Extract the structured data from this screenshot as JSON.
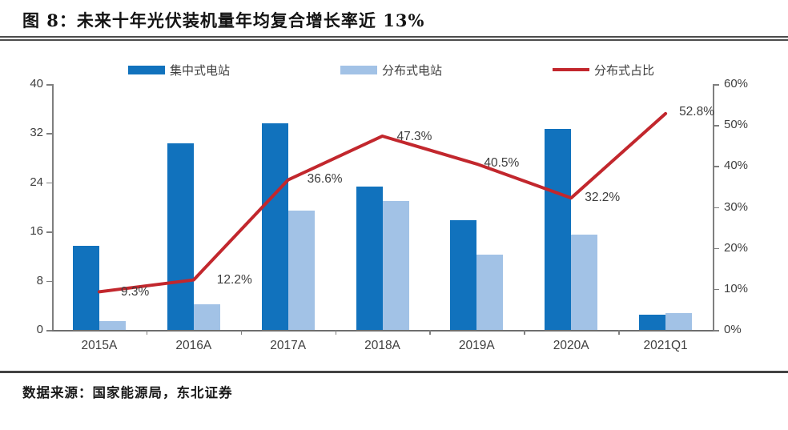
{
  "page": {
    "title": "图 8：未来十年光伏装机量年均复合增长率近 13%",
    "source": "数据来源：国家能源局，东北证券"
  },
  "chart_data": {
    "type": "bar",
    "subtype": "bar+line combo, dual axis",
    "categories": [
      "2015A",
      "2016A",
      "2017A",
      "2018A",
      "2019A",
      "2020A",
      "2021Q1"
    ],
    "series": [
      {
        "name": "集中式电站",
        "type": "bar",
        "axis": "left",
        "color": "#1172bd",
        "values": [
          13.7,
          30.3,
          33.6,
          23.3,
          17.9,
          32.7,
          2.5
        ]
      },
      {
        "name": "分布式电站",
        "type": "bar",
        "axis": "left",
        "color": "#a2c2e6",
        "values": [
          1.4,
          4.2,
          19.4,
          21.0,
          12.2,
          15.5,
          2.8
        ]
      },
      {
        "name": "分布式占比",
        "type": "line",
        "axis": "right",
        "color": "#c2272d",
        "values": [
          9.3,
          12.2,
          36.6,
          47.3,
          40.5,
          32.2,
          52.8
        ],
        "point_labels": [
          "9.3%",
          "12.2%",
          "36.6%",
          "47.3%",
          "40.5%",
          "32.2%",
          "52.8%"
        ]
      }
    ],
    "left_axis": {
      "min": 0,
      "max": 40,
      "tick_labels": [
        "40",
        "32",
        "24",
        "16",
        "8",
        "0"
      ]
    },
    "right_axis": {
      "min": 0,
      "max": 60,
      "tick_labels": [
        "60%",
        "50%",
        "40%",
        "30%",
        "20%",
        "10%",
        "0%"
      ]
    },
    "legend_position": "top",
    "grid": "off",
    "axis_color": "#7f7f7f",
    "label_color": "#3f3f3f"
  }
}
